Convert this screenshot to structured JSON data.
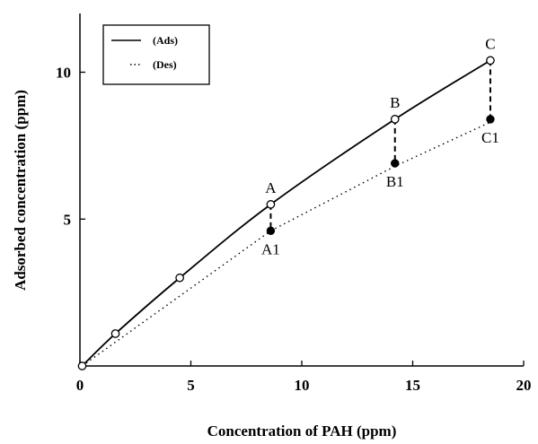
{
  "chart_data": {
    "type": "line",
    "xlabel": "Concentration of PAH (ppm)",
    "ylabel": "Adsorbed concentration (ppm)",
    "xlim": [
      0,
      20
    ],
    "ylim": [
      0,
      12
    ],
    "x_ticks": [
      "0",
      "5",
      "10",
      "15",
      "20"
    ],
    "y_ticks": [
      "5",
      "10"
    ],
    "grid": false,
    "legend_position": "top-left",
    "series": [
      {
        "name": "(Ads)",
        "style": "solid",
        "marker": "open-circle",
        "x": [
          0.1,
          1.6,
          4.5,
          8.6,
          14.2,
          18.5
        ],
        "y": [
          0.0,
          1.1,
          3.0,
          5.5,
          8.4,
          10.4
        ]
      },
      {
        "name": "(Des)",
        "style": "dotted",
        "marker": "none",
        "x": [
          0.1,
          8.6,
          14.2,
          18.5
        ],
        "y": [
          0.0,
          4.6,
          6.8,
          8.3
        ]
      }
    ],
    "desorption_points": {
      "marker": "filled-circle",
      "x": [
        8.6,
        14.2,
        18.5
      ],
      "y": [
        4.6,
        6.9,
        8.4
      ]
    },
    "annotations": [
      {
        "text": "A",
        "x": 8.6,
        "y": 5.5,
        "position": "above"
      },
      {
        "text": "A1",
        "x": 8.6,
        "y": 4.6,
        "position": "below"
      },
      {
        "text": "B",
        "x": 14.2,
        "y": 8.4,
        "position": "above"
      },
      {
        "text": "B1",
        "x": 14.2,
        "y": 6.9,
        "position": "below"
      },
      {
        "text": "C",
        "x": 18.5,
        "y": 10.4,
        "position": "above"
      },
      {
        "text": "C1",
        "x": 18.5,
        "y": 8.4,
        "position": "below"
      }
    ]
  }
}
